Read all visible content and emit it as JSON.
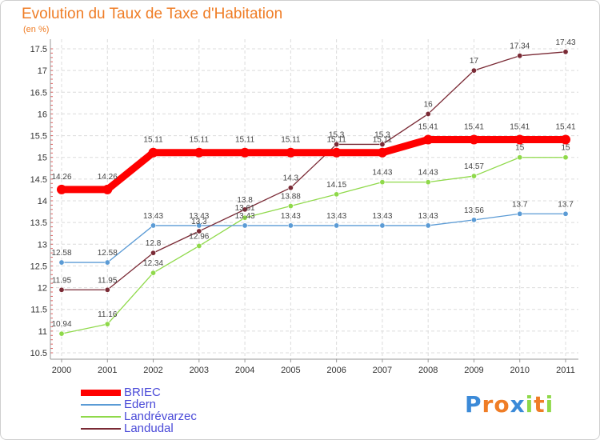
{
  "header": {
    "title": "Evolution du Taux de Taxe d'Habitation",
    "subtitle": "(en %)"
  },
  "chart_data": {
    "type": "line",
    "title": "Evolution du Taux de Taxe d'Habitation",
    "subtitle": "(en %)",
    "xlabel": "",
    "ylabel": "",
    "categories": [
      "2000",
      "2001",
      "2002",
      "2003",
      "2004",
      "2005",
      "2006",
      "2007",
      "2008",
      "2009",
      "2010",
      "2011"
    ],
    "ylim": [
      10.5,
      17.5
    ],
    "yticks": [
      10.5,
      11,
      11.5,
      12,
      12.5,
      13,
      13.5,
      14,
      14.5,
      15,
      15.5,
      16,
      16.5,
      17,
      17.5
    ],
    "ytick_labels": [
      "10.5",
      "11",
      "11.5",
      "12",
      "12.5",
      "13",
      "13.5",
      "14",
      "14.5",
      "15",
      "15.5",
      "16",
      "16.5",
      "17",
      "17.5"
    ],
    "grid": true,
    "legend_position": "bottom-left",
    "series": [
      {
        "name": "BRIEC",
        "color": "#ff0000",
        "values": [
          14.26,
          14.26,
          15.11,
          15.11,
          15.11,
          15.11,
          15.11,
          15.11,
          15.41,
          15.41,
          15.41,
          15.41
        ],
        "labels": [
          "14.26",
          "14.26",
          "15.11",
          "15.11",
          "15.11",
          "15.11",
          "15.11",
          "15.11",
          "15.41",
          "15.41",
          "15.41",
          "15.41"
        ]
      },
      {
        "name": "Edern",
        "color": "#5b9bd5",
        "values": [
          12.58,
          12.58,
          13.43,
          13.43,
          13.43,
          13.43,
          13.43,
          13.43,
          13.43,
          13.56,
          13.7,
          13.7
        ],
        "labels": [
          "12.58",
          "12.58",
          "13.43",
          "13.43",
          "13.43",
          "13.43",
          "13.43",
          "13.43",
          "13.43",
          "13.56",
          "13.7",
          "13.7"
        ]
      },
      {
        "name": "Landrévarzec",
        "color": "#8fd94a",
        "values": [
          10.94,
          11.16,
          12.34,
          12.96,
          13.61,
          13.88,
          14.15,
          14.43,
          14.43,
          14.57,
          15,
          15
        ],
        "labels": [
          "10.94",
          "11.16",
          "12.34",
          "12.96",
          "13.61",
          "13.88",
          "14.15",
          "14.43",
          "14.43",
          "14.57",
          "15",
          "15"
        ]
      },
      {
        "name": "Landudal",
        "color": "#7a2a35",
        "values": [
          11.95,
          11.95,
          12.8,
          13.3,
          13.8,
          14.3,
          15.3,
          15.3,
          16,
          17,
          17.34,
          17.43
        ],
        "labels": [
          "11.95",
          "11.95",
          "12.8",
          "13.3",
          "13.8",
          "14.3",
          "15.3",
          "15.3",
          "16",
          "17",
          "17.34",
          "17.43"
        ]
      }
    ]
  },
  "logo": {
    "letters": [
      "P",
      "r",
      "o",
      "x",
      "i",
      "t",
      "i"
    ],
    "colors": [
      "#3b8ad8",
      "#ef7d26",
      "#ef7d26",
      "#3b8ad8",
      "#8fd94a",
      "#ef7d26",
      "#8fd94a"
    ]
  }
}
